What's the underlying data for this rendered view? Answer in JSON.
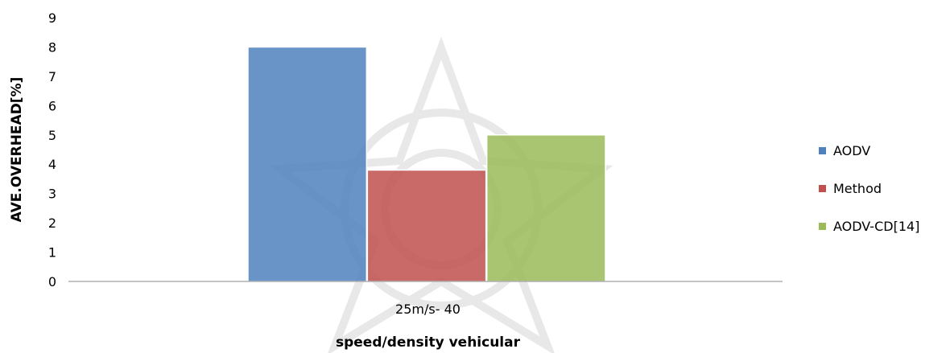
{
  "chart_data": {
    "type": "bar",
    "categories": [
      "25m/s- 40"
    ],
    "series": [
      {
        "name": "AODV",
        "values": [
          8
        ],
        "color": "#4f81bd"
      },
      {
        "name": "Method",
        "values": [
          3.8
        ],
        "color": "#c0504d"
      },
      {
        "name": "AODV-CD[14]",
        "values": [
          5
        ],
        "color": "#9bbb59"
      }
    ],
    "xlabel": "speed/density vehicular",
    "ylabel": "AVE.OVERHEAD[%]",
    "ylim": [
      0,
      9
    ],
    "yticks": [
      0,
      1,
      2,
      3,
      4,
      5,
      6,
      7,
      8,
      9
    ],
    "grid": false,
    "legend_position": "right"
  }
}
